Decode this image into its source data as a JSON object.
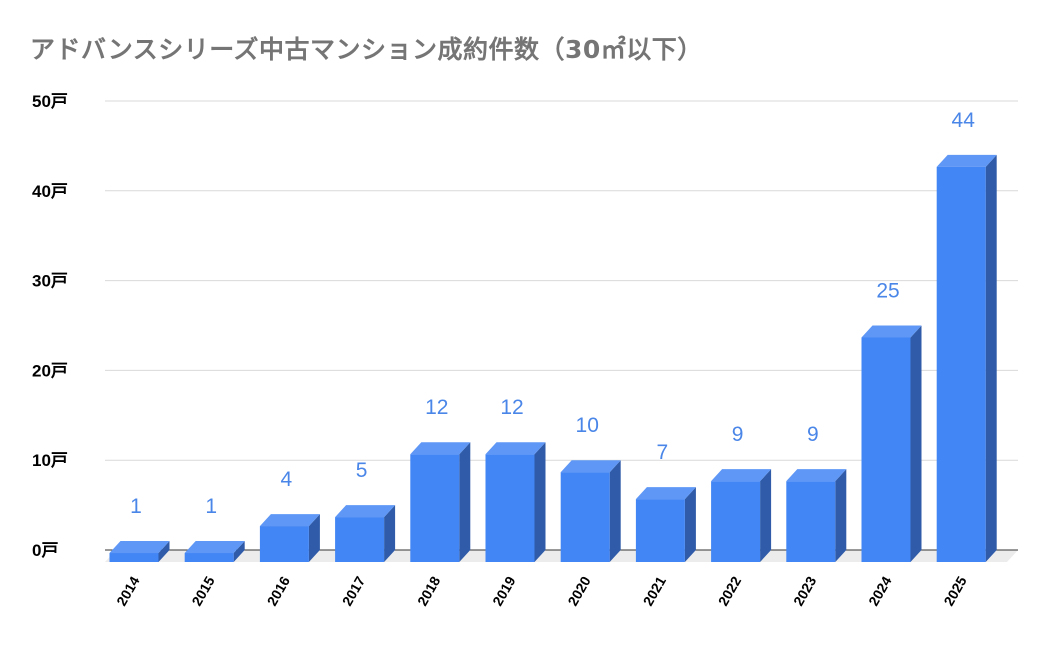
{
  "chart_data": {
    "type": "bar",
    "title": "アドバンスシリーズ中古マンション成約件数（30㎡以下）",
    "categories": [
      "2014",
      "2015",
      "2016",
      "2017",
      "2018",
      "2019",
      "2020",
      "2021",
      "2022",
      "2023",
      "2024",
      "2025"
    ],
    "values": [
      1,
      1,
      4,
      5,
      12,
      12,
      10,
      7,
      9,
      9,
      25,
      44
    ],
    "data_labels": [
      "1",
      "1",
      "4",
      "5",
      "12",
      "12",
      "10",
      "7",
      "9",
      "9",
      "25",
      "44"
    ],
    "y_ticks": [
      "0戸",
      "10戸",
      "20戸",
      "30戸",
      "40戸",
      "50戸"
    ],
    "ylim": [
      0,
      50
    ],
    "grid": true,
    "legend": "none",
    "style": "3d-bar",
    "colors": {
      "bar_front": "#4285f4",
      "bar_top": "#5e97f6",
      "bar_side": "#2f5ba8",
      "label": "#4a86e8",
      "grid": "#d9d9d9",
      "title": "#757575"
    }
  }
}
